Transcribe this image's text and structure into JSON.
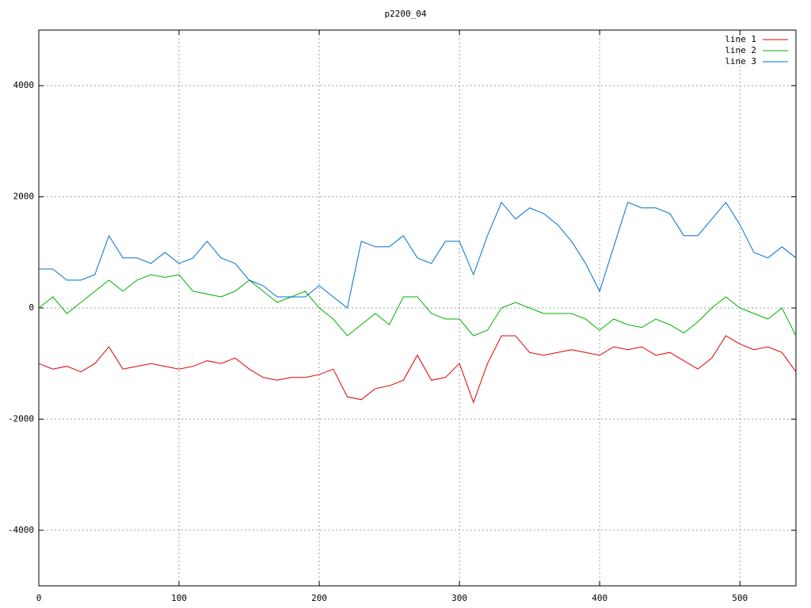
{
  "chart_data": {
    "type": "line",
    "title": "p2200_04",
    "x": [
      0,
      10,
      20,
      30,
      40,
      50,
      60,
      70,
      80,
      90,
      100,
      110,
      120,
      130,
      140,
      150,
      160,
      170,
      180,
      190,
      200,
      210,
      220,
      230,
      240,
      250,
      260,
      270,
      280,
      290,
      300,
      310,
      320,
      330,
      340,
      350,
      360,
      370,
      380,
      390,
      400,
      410,
      420,
      430,
      440,
      450,
      460,
      470,
      480,
      490,
      500,
      510,
      520,
      530,
      540
    ],
    "series": [
      {
        "name": "line 1",
        "color": "#e00000",
        "values": [
          -1000,
          -1100,
          -1050,
          -1150,
          -1000,
          -700,
          -1100,
          -1050,
          -1000,
          -1050,
          -1100,
          -1050,
          -950,
          -1000,
          -900,
          -1100,
          -1250,
          -1300,
          -1250,
          -1250,
          -1200,
          -1100,
          -1600,
          -1650,
          -1450,
          -1400,
          -1300,
          -850,
          -1300,
          -1250,
          -1000,
          -1700,
          -1000,
          -500,
          -500,
          -800,
          -850,
          -800,
          -750,
          -800,
          -850,
          -700,
          -750,
          -700,
          -850,
          -800,
          -950,
          -1100,
          -900,
          -500,
          -650,
          -750,
          -700,
          -800,
          -1150
        ]
      },
      {
        "name": "line 2",
        "color": "#00b000",
        "values": [
          0,
          200,
          -100,
          100,
          300,
          500,
          300,
          500,
          600,
          550,
          600,
          300,
          250,
          200,
          300,
          500,
          300,
          100,
          200,
          300,
          0,
          -200,
          -500,
          -300,
          -100,
          -300,
          200,
          200,
          -100,
          -200,
          -200,
          -500,
          -400,
          0,
          100,
          0,
          -100,
          -100,
          -100,
          -200,
          -400,
          -200,
          -300,
          -350,
          -200,
          -300,
          -450,
          -250,
          0,
          200,
          0,
          -100,
          -200,
          0,
          -500
        ]
      },
      {
        "name": "line 3",
        "color": "#0070d0",
        "values": [
          700,
          700,
          500,
          500,
          600,
          1300,
          900,
          900,
          800,
          1000,
          800,
          900,
          1200,
          900,
          800,
          500,
          400,
          200,
          200,
          200,
          400,
          200,
          0,
          1200,
          1100,
          1100,
          1300,
          900,
          800,
          1200,
          1200,
          600,
          1300,
          1900,
          1600,
          1800,
          1700,
          1500,
          1200,
          800,
          300,
          1100,
          1900,
          1800,
          1800,
          1700,
          1300,
          1300,
          1600,
          1900,
          1500,
          1000,
          900,
          1100,
          900
        ]
      }
    ],
    "xlim": [
      0,
      540
    ],
    "xticks": [
      0,
      100,
      200,
      300,
      400,
      500
    ],
    "ylim": [
      -5000,
      5000
    ],
    "yticks": [
      -4000,
      -2000,
      0,
      2000,
      4000
    ],
    "grid": true,
    "legend": "top-right"
  }
}
